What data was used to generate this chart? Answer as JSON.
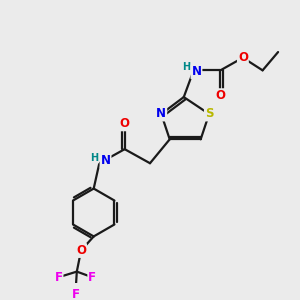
{
  "bg_color": "#ebebeb",
  "colors": {
    "C": "#1a1a1a",
    "N": "#0000ee",
    "O": "#ee0000",
    "S": "#b8b800",
    "F": "#ee00ee",
    "H": "#008888"
  }
}
